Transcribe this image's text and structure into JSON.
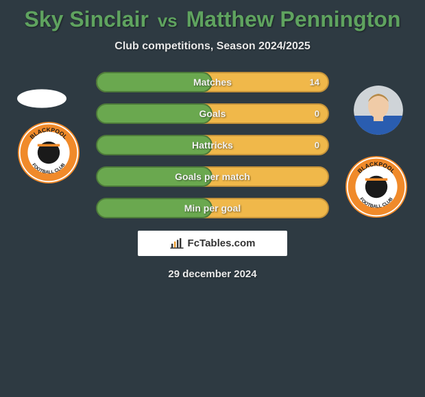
{
  "title": {
    "player1": "Sky Sinclair",
    "vs": "vs",
    "player2": "Matthew Pennington"
  },
  "subtitle": "Club competitions, Season 2024/2025",
  "colors": {
    "background": "#2e3a42",
    "title": "#5fa35f",
    "bar_left": "#6aa84f",
    "bar_left_border": "#4d7a3a",
    "bar_right": "#f0b84a",
    "bar_right_border": "#c4923a",
    "text_light": "#f2f2f2"
  },
  "stats": [
    {
      "label": "Matches",
      "left_pct": 50,
      "right_pct": 100,
      "right_value": "14"
    },
    {
      "label": "Goals",
      "left_pct": 50,
      "right_pct": 98,
      "right_value": "0"
    },
    {
      "label": "Hattricks",
      "left_pct": 50,
      "right_pct": 98,
      "right_value": "0"
    },
    {
      "label": "Goals per match",
      "left_pct": 50,
      "right_pct": 98,
      "right_value": ""
    },
    {
      "label": "Min per goal",
      "left_pct": 50,
      "right_pct": 98,
      "right_value": ""
    }
  ],
  "branding": "FcTables.com",
  "date": "29 december 2024",
  "player2_avatar": {
    "shirt_color": "#2a5db0",
    "skin_color": "#f0cba7",
    "hair_color": "#b58a4a"
  },
  "club_badge": {
    "ring_color": "#f08a2a",
    "inner_color": "#ffffff",
    "center_color": "#1a1a1a",
    "top_text": "BLACKPOOL",
    "bottom_text": "FOOTBALL CLUB",
    "text_color": "#1a1a1a"
  }
}
